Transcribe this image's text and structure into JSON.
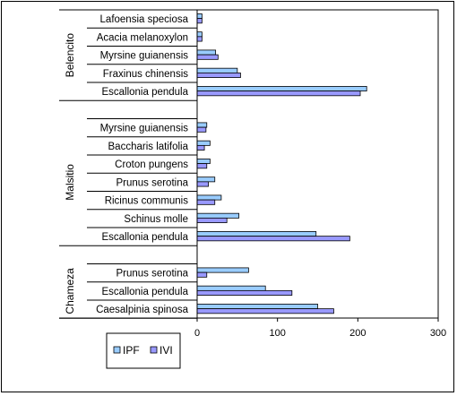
{
  "chart_data": {
    "type": "bar",
    "orientation": "horizontal",
    "title": "",
    "xlabel": "",
    "ylabel": "",
    "xlim": [
      0,
      300
    ],
    "xticks": [
      0,
      100,
      200,
      300
    ],
    "grid": false,
    "legend_position": "bottom-left",
    "series": [
      {
        "name": "IPF",
        "color": "#99ccff"
      },
      {
        "name": "IVI",
        "color": "#9999ff"
      }
    ],
    "groups": [
      {
        "name": "Belencito",
        "items": [
          {
            "label": "Lafoensia speciosa",
            "IPF": 6,
            "IVI": 6
          },
          {
            "label": "Acacia melanoxylon",
            "IPF": 6,
            "IVI": 6
          },
          {
            "label": "Myrsine guianensis",
            "IPF": 23,
            "IVI": 26
          },
          {
            "label": "Fraxinus chinensis",
            "IPF": 50,
            "IVI": 54
          },
          {
            "label": "Escallonia pendula",
            "IPF": 211,
            "IVI": 203
          }
        ]
      },
      {
        "name": "Malsitio",
        "items": [
          {
            "label": "Myrsine guianensis",
            "IPF": 12,
            "IVI": 11
          },
          {
            "label": "Baccharis latifolia",
            "IPF": 16,
            "IVI": 9
          },
          {
            "label": "Croton pungens",
            "IPF": 16,
            "IVI": 12
          },
          {
            "label": "Prunus serotina",
            "IPF": 22,
            "IVI": 14
          },
          {
            "label": "Ricinus communis",
            "IPF": 30,
            "IVI": 22
          },
          {
            "label": "Schinus molle",
            "IPF": 52,
            "IVI": 37
          },
          {
            "label": "Escallonia pendula",
            "IPF": 148,
            "IVI": 190
          }
        ]
      },
      {
        "name": "Chameza",
        "items": [
          {
            "label": "Prunus serotina",
            "IPF": 64,
            "IVI": 12
          },
          {
            "label": "Escallonia pendula",
            "IPF": 85,
            "IVI": 118
          },
          {
            "label": "Caesalpinia spinosa",
            "IPF": 150,
            "IVI": 170
          }
        ]
      }
    ]
  }
}
